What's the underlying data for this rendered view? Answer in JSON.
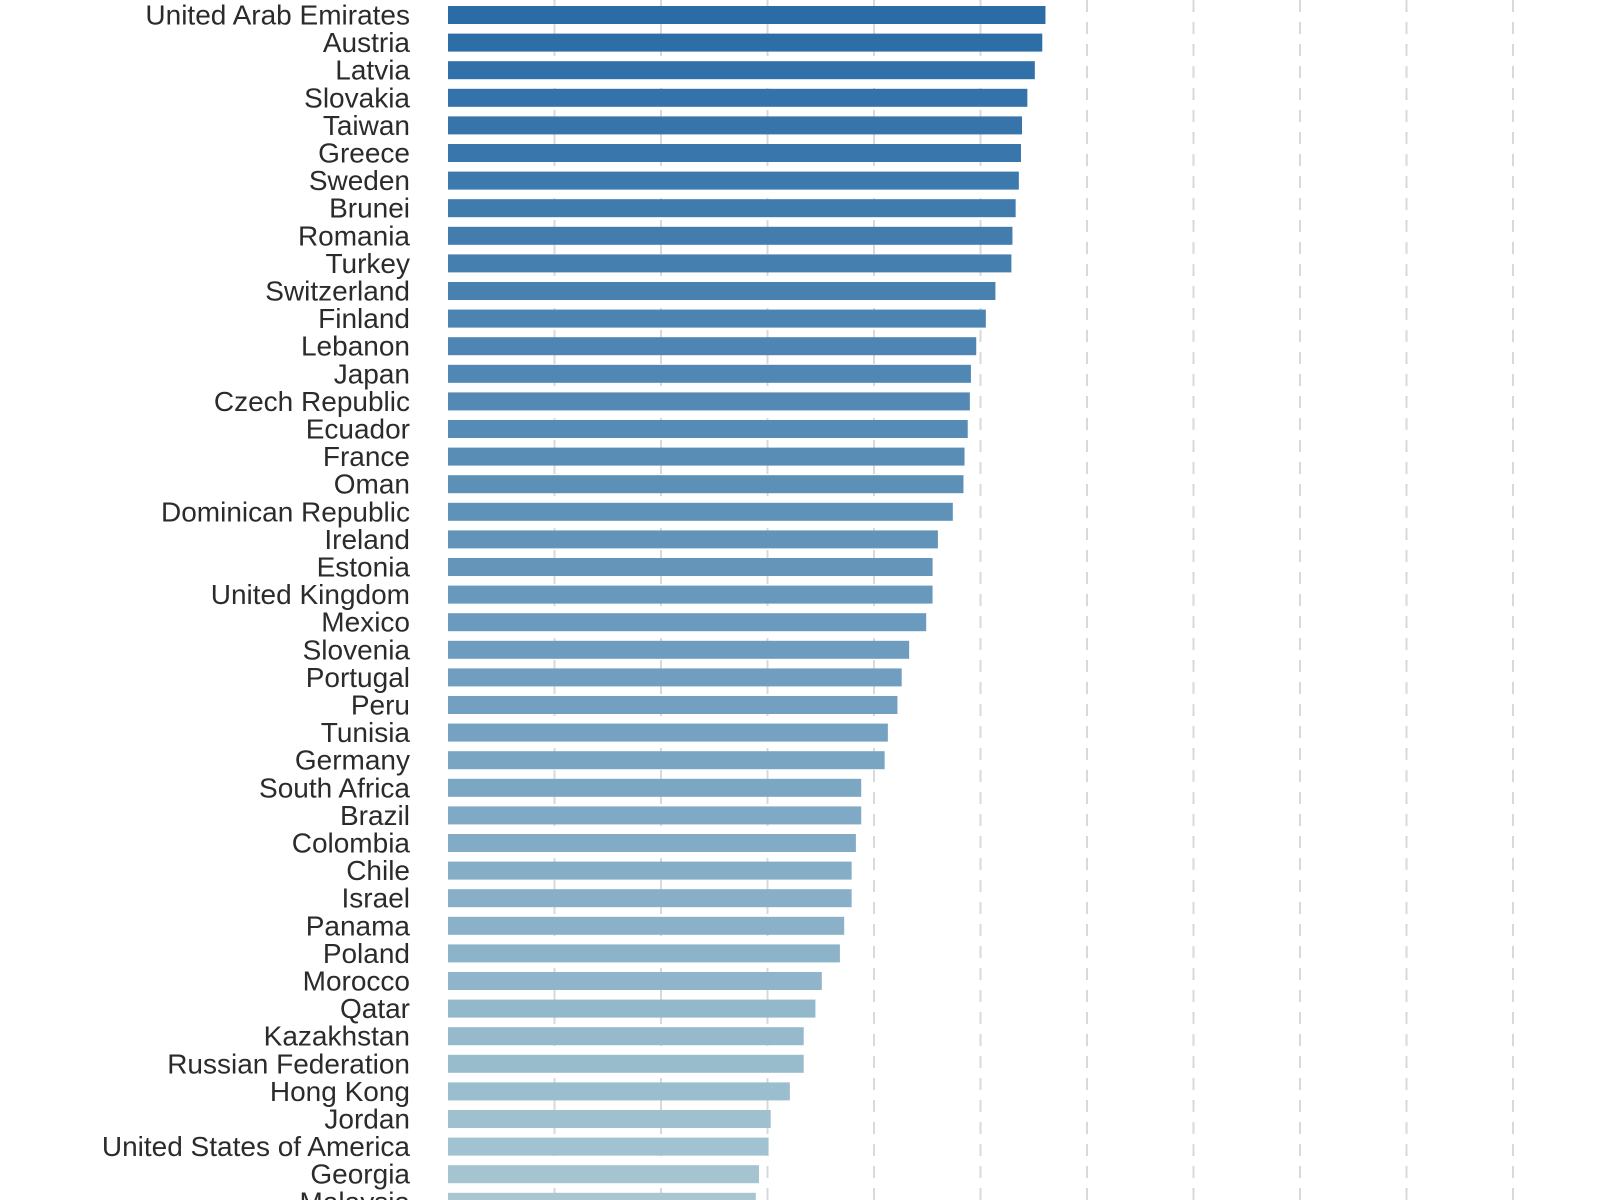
{
  "chart_data": {
    "type": "bar",
    "orientation": "horizontal",
    "title": "",
    "xlabel": "",
    "ylabel": "",
    "grid": "vertical-dashed",
    "xlim": [
      0,
      100
    ],
    "color_start": "#2b6ca6",
    "color_end": "#a7c6d2",
    "categories": [
      "United Arab Emirates",
      "Austria",
      "Latvia",
      "Slovakia",
      "Taiwan",
      "Greece",
      "Sweden",
      "Brunei",
      "Romania",
      "Turkey",
      "Switzerland",
      "Finland",
      "Lebanon",
      "Japan",
      "Czech Republic",
      "Ecuador",
      "France",
      "Oman",
      "Dominican Republic",
      "Ireland",
      "Estonia",
      "United Kingdom",
      "Mexico",
      "Slovenia",
      "Portugal",
      "Peru",
      "Tunisia",
      "Germany",
      "South Africa",
      "Brazil",
      "Colombia",
      "Chile",
      "Israel",
      "Panama",
      "Poland",
      "Morocco",
      "Qatar",
      "Kazakhstan",
      "Russian Federation",
      "Hong Kong",
      "Jordan",
      "United States of America",
      "Georgia",
      "Malaysia"
    ],
    "values": [
      56.1,
      55.8,
      55.1,
      54.4,
      53.9,
      53.8,
      53.6,
      53.3,
      53.0,
      52.9,
      51.4,
      50.5,
      49.6,
      49.1,
      49.0,
      48.8,
      48.5,
      48.4,
      47.4,
      46.0,
      45.5,
      45.5,
      44.9,
      43.3,
      42.6,
      42.2,
      41.3,
      41.0,
      38.8,
      38.8,
      38.3,
      37.9,
      37.9,
      37.2,
      36.8,
      35.1,
      34.5,
      33.4,
      33.4,
      32.1,
      30.3,
      30.1,
      29.2,
      28.9
    ]
  }
}
